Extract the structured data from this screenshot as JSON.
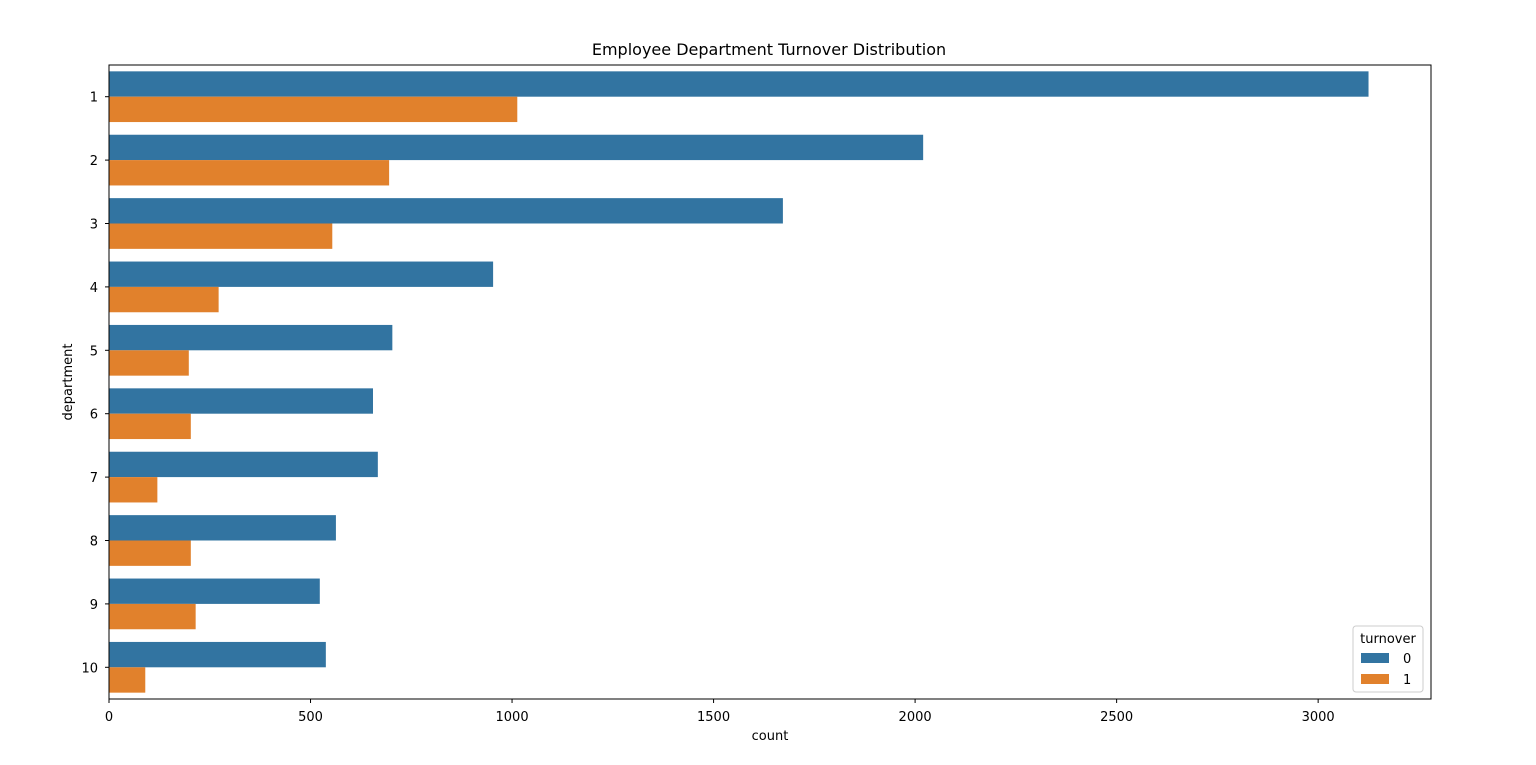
{
  "chart_data": {
    "type": "bar",
    "orientation": "horizontal",
    "title": "Employee Department Turnover Distribution",
    "xlabel": "count",
    "ylabel": "department",
    "categories": [
      "1",
      "2",
      "3",
      "4",
      "5",
      "6",
      "7",
      "8",
      "9",
      "10"
    ],
    "series": [
      {
        "name": "0",
        "color": "#3274a1",
        "values": [
          3125,
          2020,
          1672,
          953,
          703,
          655,
          667,
          563,
          523,
          538
        ]
      },
      {
        "name": "1",
        "color": "#e1812c",
        "values": [
          1013,
          695,
          554,
          272,
          198,
          203,
          120,
          203,
          215,
          90
        ]
      }
    ],
    "xlim": [
      0,
      3280
    ],
    "xticks": [
      0,
      500,
      1000,
      1500,
      2000,
      2500,
      3000
    ],
    "grid": false,
    "legend": {
      "title": "turnover",
      "placement": "lower-right"
    }
  }
}
